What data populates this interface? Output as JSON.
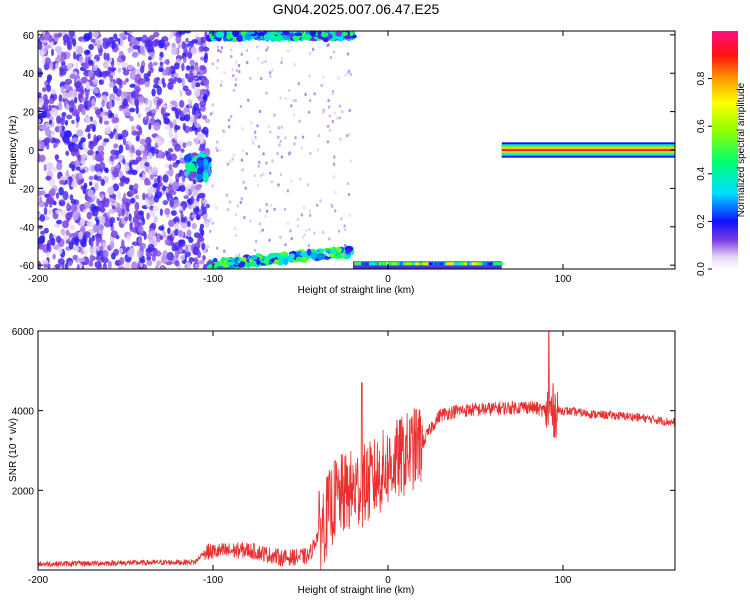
{
  "title": "GN04.2025.007.06.47.E25",
  "chart_data": [
    {
      "type": "heatmap",
      "xlabel": "Height of straight line (km)",
      "ylabel": "Frequency (Hz)",
      "xlim": [
        -200,
        164
      ],
      "ylim": [
        -62,
        62
      ],
      "xticks": [
        -200,
        -100,
        0,
        100
      ],
      "yticks": [
        -60,
        -40,
        -20,
        0,
        20,
        40,
        60
      ],
      "colorbar": {
        "label": "Normalized spectral amplitude",
        "range": [
          0,
          1
        ],
        "ticks": [
          0,
          0.2,
          0.4,
          0.6,
          0.8
        ]
      },
      "features": [
        {
          "x": [
            -200,
            -103
          ],
          "y": [
            -62,
            62
          ],
          "amplitude": 0.15,
          "kind": "noise"
        },
        {
          "x": [
            -115,
            -103
          ],
          "y": [
            -15,
            -3
          ],
          "amplitude": 0.35,
          "kind": "blob"
        },
        {
          "x": [
            -102,
            -20
          ],
          "y": [
            55,
            62
          ],
          "amplitude": 0.4,
          "kind": "line-top"
        },
        {
          "x": [
            -102,
            -20
          ],
          "y": [
            -62,
            -50
          ],
          "amplitude": 0.45,
          "kind": "line-bottom"
        },
        {
          "x": [
            -20,
            65
          ],
          "y": [
            -62,
            -58
          ],
          "amplitude": 0.55,
          "kind": "line-bottom-flat"
        },
        {
          "x": [
            65,
            164
          ],
          "y": [
            -3,
            3
          ],
          "amplitude": 0.95,
          "kind": "tone"
        }
      ]
    },
    {
      "type": "line",
      "xlabel": "Height of straight line (km)",
      "ylabel": "SNR (10 * v/v)",
      "xlim": [
        -200,
        164
      ],
      "ylim": [
        0,
        6000
      ],
      "xticks": [
        -200,
        -100,
        0,
        100
      ],
      "yticks": [
        2000,
        4000,
        6000
      ],
      "color": "#e83030",
      "trend": {
        "x": [
          -200,
          -110,
          -105,
          -80,
          -60,
          -45,
          -40,
          -30,
          -20,
          -10,
          0,
          10,
          20,
          25,
          30,
          40,
          60,
          80,
          90,
          100,
          120,
          140,
          164
        ],
        "y": [
          150,
          200,
          450,
          500,
          300,
          350,
          900,
          1800,
          2000,
          2200,
          2600,
          2900,
          3200,
          3600,
          3900,
          4000,
          4050,
          4100,
          4000,
          4000,
          3900,
          3850,
          3700
        ]
      }
    }
  ]
}
